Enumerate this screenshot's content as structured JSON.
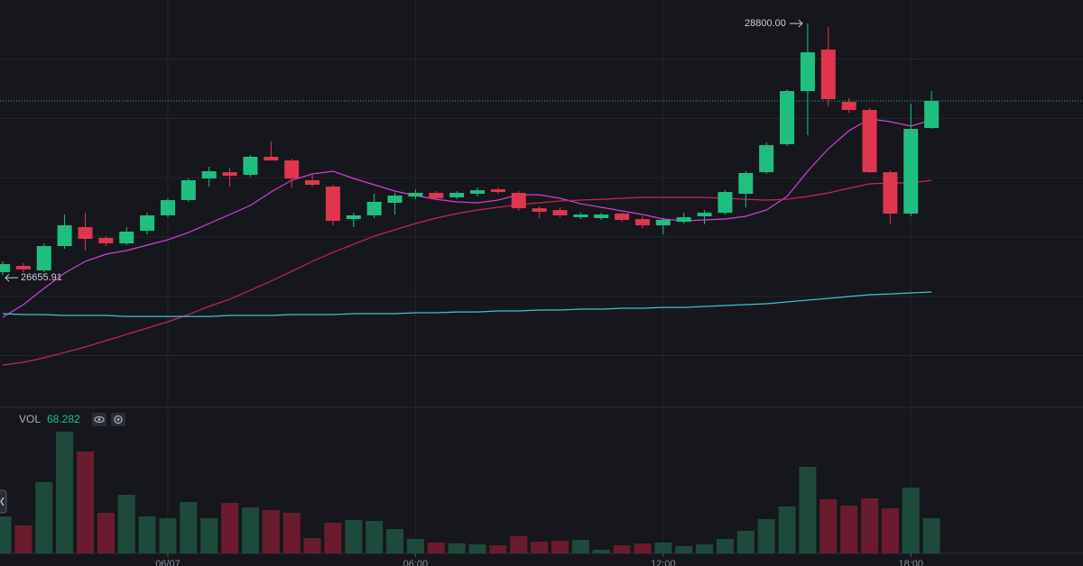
{
  "chart_data": {
    "type": "candlestick",
    "categories": [
      null,
      null,
      null,
      null,
      null,
      null,
      null,
      null,
      "06/07",
      null,
      null,
      null,
      null,
      null,
      null,
      null,
      null,
      null,
      null,
      null,
      "06:00",
      null,
      null,
      null,
      null,
      null,
      null,
      null,
      null,
      null,
      null,
      null,
      "12:00",
      null,
      null,
      null,
      null,
      null,
      null,
      null,
      null,
      null,
      null,
      null,
      "18:00",
      null
    ],
    "open": [
      26703,
      26756,
      26718,
      26923,
      27083,
      26992,
      26946,
      27052,
      27182,
      27311,
      27493,
      27546,
      27524,
      27676,
      27645,
      27478,
      27425,
      27151,
      27182,
      27288,
      27341,
      27372,
      27334,
      27364,
      27402,
      27372,
      27242,
      27227,
      27166,
      27159,
      27197,
      27151,
      27098,
      27128,
      27174,
      27204,
      27364,
      27546,
      27782,
      28230,
      28580,
      28139,
      28071,
      27546,
      27197,
      27919
    ],
    "high": [
      26794,
      26779,
      26946,
      27189,
      27204,
      27007,
      27083,
      27204,
      27326,
      27493,
      27592,
      27584,
      27691,
      27805,
      27660,
      27531,
      27440,
      27204,
      27364,
      27372,
      27402,
      27387,
      27387,
      27417,
      27417,
      27387,
      27258,
      27250,
      27204,
      27204,
      27204,
      27174,
      27159,
      27204,
      27227,
      27394,
      27554,
      27797,
      28246,
      28800,
      28770,
      28170,
      28086,
      27562,
      28124,
      28230
    ],
    "low": [
      26680,
      26703,
      26703,
      26900,
      26885,
      26923,
      26931,
      27022,
      27166,
      27296,
      27425,
      27425,
      27508,
      27645,
      27417,
      27425,
      27098,
      27083,
      27159,
      27189,
      27318,
      27311,
      27318,
      27341,
      27364,
      27220,
      27159,
      27166,
      27151,
      27144,
      27128,
      27075,
      27022,
      27113,
      27106,
      27189,
      27250,
      27531,
      27767,
      27858,
      28101,
      28048,
      27539,
      27113,
      27174,
      27911
    ],
    "close": [
      26771,
      26726,
      26923,
      27098,
      26984,
      26946,
      27045,
      27182,
      27311,
      27478,
      27554,
      27516,
      27676,
      27645,
      27493,
      27440,
      27136,
      27182,
      27296,
      27349,
      27372,
      27326,
      27372,
      27394,
      27379,
      27242,
      27212,
      27182,
      27189,
      27189,
      27144,
      27098,
      27144,
      27166,
      27204,
      27379,
      27539,
      27774,
      28230,
      28557,
      28162,
      28071,
      27546,
      27197,
      27911,
      28147
    ],
    "volume": [
      71.8,
      54.3,
      138.3,
      236.3,
      197.8,
      78.8,
      113.8,
      71.8,
      68.3,
      99.8,
      68.3,
      98,
      89.3,
      84,
      78.8,
      29.8,
      59.5,
      64.8,
      63,
      47.3,
      28,
      21,
      19.3,
      17.5,
      15.8,
      33.3,
      22.8,
      24.5,
      26.3,
      7,
      15.8,
      19.3,
      21,
      14,
      17.5,
      28,
      43.8,
      66.5,
      91,
      168,
      105,
      92.8,
      106.8,
      87.5,
      127.8,
      68.282
    ],
    "volume_label": "VOL",
    "lines": [
      {
        "color": "#d23fd8",
        "values": [
          26323,
          26429,
          26566,
          26695,
          26794,
          26855,
          26885,
          26931,
          26976,
          27037,
          27113,
          27189,
          27265,
          27379,
          27478,
          27531,
          27554,
          27493,
          27440,
          27387,
          27349,
          27318,
          27296,
          27288,
          27311,
          27356,
          27356,
          27326,
          27280,
          27250,
          27220,
          27189,
          27151,
          27136,
          27144,
          27151,
          27174,
          27227,
          27341,
          27554,
          27744,
          27896,
          27995,
          27972,
          27934,
          27987
        ]
      },
      {
        "color": "#c2255c",
        "values": [
          25920,
          25943,
          25981,
          26026,
          26072,
          26125,
          26178,
          26232,
          26285,
          26346,
          26414,
          26475,
          26551,
          26627,
          26710,
          26794,
          26870,
          26938,
          27007,
          27060,
          27113,
          27159,
          27197,
          27227,
          27250,
          27273,
          27288,
          27303,
          27311,
          27318,
          27326,
          27334,
          27334,
          27334,
          27334,
          27326,
          27318,
          27311,
          27318,
          27341,
          27372,
          27410,
          27448,
          27455,
          27455,
          27478
        ]
      },
      {
        "color": "#3fc5c9",
        "values": [
          26353,
          26346,
          26346,
          26338,
          26338,
          26338,
          26330,
          26330,
          26330,
          26330,
          26330,
          26338,
          26338,
          26338,
          26346,
          26346,
          26346,
          26353,
          26353,
          26353,
          26361,
          26361,
          26368,
          26368,
          26376,
          26376,
          26384,
          26384,
          26391,
          26391,
          26399,
          26399,
          26406,
          26406,
          26414,
          26422,
          26429,
          26437,
          26452,
          26467,
          26482,
          26498,
          26513,
          26520,
          26528,
          26536
        ]
      }
    ],
    "annotations": [
      {
        "value": 28800,
        "label": "28800.00"
      },
      {
        "value": 26655.91,
        "label": "26655.91"
      }
    ],
    "up_color": "#1fc07f",
    "down_color": "#e0354f",
    "volume_up_color": "#1e4a3b",
    "volume_down_color": "#6a1c2e",
    "ylim": [
      25563,
      28998
    ],
    "yticks": [
      26000,
      26500,
      27000,
      27500,
      28000,
      28500
    ],
    "volume_ylim": [
      0,
      280
    ],
    "grid": true
  }
}
